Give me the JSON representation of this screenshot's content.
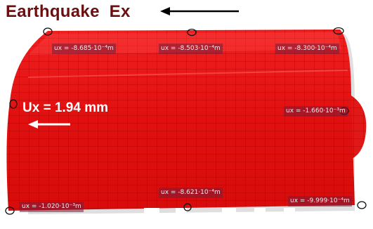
{
  "header": {
    "title": "Earthquake  Ex"
  },
  "displacement": {
    "label": "Ux = 1.94 mm"
  },
  "node_labels": [
    "ux = -8.685·10⁻⁴m",
    "ux = -8.503·10⁻⁴m",
    "ux = -8.300·10⁻⁴m",
    "ux = -1.660·10⁻³m",
    "ux = -8.621·10⁻⁴m",
    "ux = -1.020·10⁻³m",
    "ux = -9.999·10⁻⁴m"
  ]
}
